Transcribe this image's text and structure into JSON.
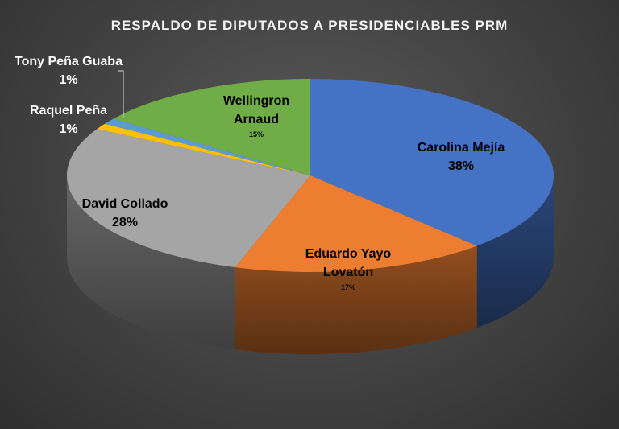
{
  "chart_data": {
    "type": "pie",
    "title": "RESPALDO DE DIPUTADOS A PRESIDENCIABLES PRM",
    "style": "3d-exploded-none",
    "slices": [
      {
        "name": "Carolina Mejía",
        "value": 38,
        "label": "38%",
        "color": "#4472c4"
      },
      {
        "name": "Eduardo Yayo Lovatón",
        "value": 17,
        "label": "17%",
        "color": "#ed7d31"
      },
      {
        "name": "David Collado",
        "value": 28,
        "label": "28%",
        "color": "#a5a5a5"
      },
      {
        "name": "Raquel Peña",
        "value": 1,
        "label": "1%",
        "color": "#ffc000"
      },
      {
        "name": "Tony Peña Guaba",
        "value": 1,
        "label": "1%",
        "color": "#5b9bd5"
      },
      {
        "name": "Wellingron Arnaud",
        "value": 15,
        "label": "15%",
        "color": "#70ad47"
      }
    ]
  },
  "colors": {
    "background_center": "#5c5c5c",
    "background_edge": "#2f2f2f",
    "title_text": "#f2f2f2",
    "outside_label_text": "#ffffff",
    "inside_label_text": "#000000"
  }
}
